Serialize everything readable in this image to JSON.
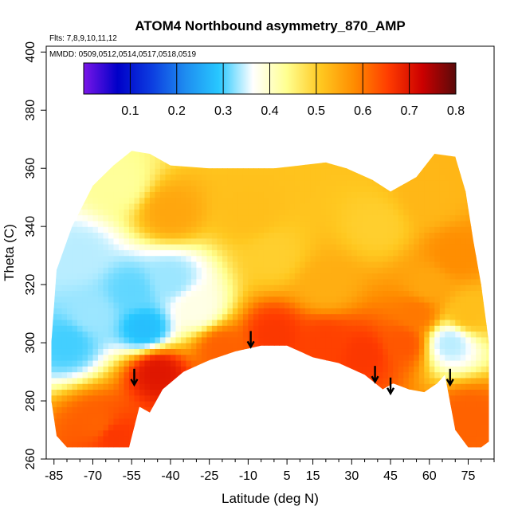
{
  "chart_data": {
    "type": "heatmap",
    "title": "ATOM4 Northbound asymmetry_870_AMP",
    "annotations": {
      "flights": "Flts: 7,8,9,10,11,12",
      "dates": "MMDD: 0509,0512,0514,0517,0518,0519"
    },
    "xlabel": "Latitude (deg N)",
    "ylabel": "Theta (C)",
    "xlim": [
      -88,
      85
    ],
    "ylim": [
      260,
      402
    ],
    "x_ticks": [
      -85,
      -70,
      -55,
      -40,
      -25,
      -10,
      5,
      15,
      30,
      45,
      60,
      75
    ],
    "y_ticks": [
      260,
      280,
      300,
      320,
      340,
      360,
      380,
      400
    ],
    "colorbar": {
      "range": [
        0,
        0.8
      ],
      "ticks": [
        "0.1",
        "0.2",
        "0.3",
        "0.4",
        "0.5",
        "0.6",
        "0.7",
        "0.8"
      ],
      "colors": [
        "#7a16e8",
        "#0000c8",
        "#0c3ce0",
        "#1e8cf0",
        "#28c8ff",
        "#ffffff",
        "#ffff90",
        "#ffc820",
        "#ff8c00",
        "#ff3c00",
        "#cc0000",
        "#5a0a0a"
      ]
    },
    "arrows_latitude": [
      -54,
      -9,
      39,
      45,
      68
    ],
    "boundary": {
      "bottom": [
        [
          -84,
          268
        ],
        [
          -80,
          264
        ],
        [
          -56,
          264
        ],
        [
          -52,
          278
        ],
        [
          -48,
          276
        ],
        [
          -43,
          284
        ],
        [
          -35,
          290
        ],
        [
          -25,
          294
        ],
        [
          -15,
          297
        ],
        [
          -5,
          299
        ],
        [
          5,
          299
        ],
        [
          15,
          295
        ],
        [
          25,
          293
        ],
        [
          35,
          289
        ],
        [
          42,
          284
        ],
        [
          46,
          286
        ],
        [
          52,
          284
        ],
        [
          58,
          283
        ],
        [
          63,
          286
        ],
        [
          66,
          289
        ],
        [
          70,
          270
        ],
        [
          75,
          264
        ],
        [
          80,
          264
        ],
        [
          83,
          266
        ]
      ],
      "top": [
        [
          83,
          300
        ],
        [
          80,
          320
        ],
        [
          77,
          335
        ],
        [
          74,
          352
        ],
        [
          70,
          364
        ],
        [
          62,
          365
        ],
        [
          55,
          357
        ],
        [
          45,
          352
        ],
        [
          38,
          356
        ],
        [
          28,
          360
        ],
        [
          20,
          362
        ],
        [
          10,
          361
        ],
        [
          0,
          360
        ],
        [
          -10,
          360
        ],
        [
          -25,
          360
        ],
        [
          -40,
          361
        ],
        [
          -48,
          365
        ],
        [
          -55,
          366
        ],
        [
          -62,
          361
        ],
        [
          -70,
          354
        ],
        [
          -78,
          340
        ],
        [
          -84,
          325
        ],
        [
          -86,
          300
        ],
        [
          -86,
          280
        ]
      ]
    },
    "field_features": [
      {
        "lat": -68,
        "theta": 272,
        "value": 0.62
      },
      {
        "lat": -62,
        "theta": 268,
        "value": 0.66
      },
      {
        "lat": -80,
        "theta": 300,
        "value": 0.3
      },
      {
        "lat": -70,
        "theta": 310,
        "value": 0.33
      },
      {
        "lat": -55,
        "theta": 318,
        "value": 0.31
      },
      {
        "lat": -40,
        "theta": 322,
        "value": 0.33
      },
      {
        "lat": -30,
        "theta": 312,
        "value": 0.38
      },
      {
        "lat": -50,
        "theta": 305,
        "value": 0.28
      },
      {
        "lat": -75,
        "theta": 330,
        "value": 0.34
      },
      {
        "lat": -45,
        "theta": 290,
        "value": 0.7
      },
      {
        "lat": -20,
        "theta": 298,
        "value": 0.62
      },
      {
        "lat": 0,
        "theta": 303,
        "value": 0.66
      },
      {
        "lat": 20,
        "theta": 300,
        "value": 0.65
      },
      {
        "lat": 35,
        "theta": 296,
        "value": 0.66
      },
      {
        "lat": 50,
        "theta": 300,
        "value": 0.63
      },
      {
        "lat": 20,
        "theta": 320,
        "value": 0.54
      },
      {
        "lat": 0,
        "theta": 330,
        "value": 0.5
      },
      {
        "lat": -10,
        "theta": 345,
        "value": 0.52
      },
      {
        "lat": -40,
        "theta": 345,
        "value": 0.55
      },
      {
        "lat": -60,
        "theta": 355,
        "value": 0.43
      },
      {
        "lat": 40,
        "theta": 340,
        "value": 0.5
      },
      {
        "lat": 60,
        "theta": 350,
        "value": 0.53
      },
      {
        "lat": 70,
        "theta": 330,
        "value": 0.58
      },
      {
        "lat": 60,
        "theta": 320,
        "value": 0.55
      },
      {
        "lat": 75,
        "theta": 310,
        "value": 0.52
      },
      {
        "lat": 68,
        "theta": 300,
        "value": 0.34
      },
      {
        "lat": 75,
        "theta": 275,
        "value": 0.62
      },
      {
        "lat": 55,
        "theta": 310,
        "value": 0.6
      }
    ]
  }
}
